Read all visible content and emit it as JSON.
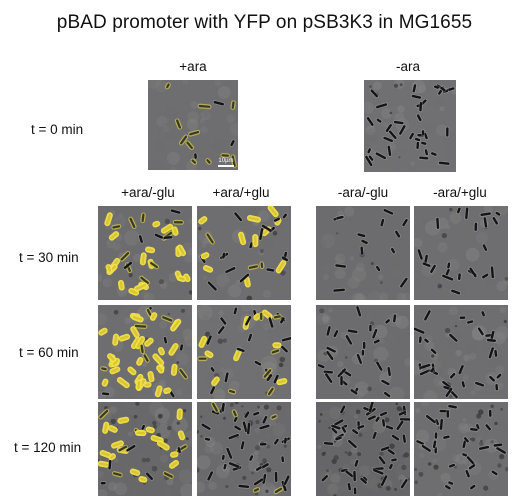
{
  "title": "pBAD promoter with YFP on pSB3K3 in MG1655",
  "top_headers": {
    "plus_ara": "+ara",
    "minus_ara": "-ara"
  },
  "sub_headers": [
    "+ara/-glu",
    "+ara/+glu",
    "-ara/-glu",
    "-ara/+glu"
  ],
  "time_labels": [
    "t = 0 min",
    "t = 30 min",
    "t = 60 min",
    "t = 120 min"
  ],
  "scale_bar": "10µm",
  "colors": {
    "background": "#ffffff",
    "micrograph_gray": "#7e7e7e",
    "cell_dark": "#141414",
    "yfp_yellow": "#f2e24a"
  },
  "panels": [
    {
      "id": "t0-plus-ara",
      "seed": 11,
      "cells": 14,
      "yellow_fraction": 0.0,
      "glow_fraction": 0.7,
      "debris": 0,
      "bright": 110
    },
    {
      "id": "t0-minus-ara",
      "seed": 23,
      "cells": 38,
      "yellow_fraction": 0,
      "glow_fraction": 0,
      "debris": 6,
      "bright": 112
    },
    {
      "id": "t30-plus-ara-minus-glu",
      "seed": 31,
      "cells": 34,
      "yellow_fraction": 0.65,
      "glow_fraction": 0.2,
      "debris": 5,
      "bright": 108
    },
    {
      "id": "t30-plus-ara-plus-glu",
      "seed": 37,
      "cells": 30,
      "yellow_fraction": 0.25,
      "glow_fraction": 0.2,
      "debris": 5,
      "bright": 110
    },
    {
      "id": "t30-minus-ara-minus-glu",
      "seed": 41,
      "cells": 14,
      "yellow_fraction": 0,
      "glow_fraction": 0,
      "debris": 4,
      "bright": 108
    },
    {
      "id": "t30-minus-ara-plus-glu",
      "seed": 43,
      "cells": 22,
      "yellow_fraction": 0,
      "glow_fraction": 0,
      "debris": 5,
      "bright": 110
    },
    {
      "id": "t60-plus-ara-minus-glu",
      "seed": 47,
      "cells": 46,
      "yellow_fraction": 0.75,
      "glow_fraction": 0.15,
      "debris": 5,
      "bright": 110
    },
    {
      "id": "t60-plus-ara-plus-glu",
      "seed": 53,
      "cells": 36,
      "yellow_fraction": 0.15,
      "glow_fraction": 0.25,
      "debris": 8,
      "bright": 112
    },
    {
      "id": "t60-minus-ara-minus-glu",
      "seed": 59,
      "cells": 28,
      "yellow_fraction": 0,
      "glow_fraction": 0,
      "debris": 6,
      "bright": 108
    },
    {
      "id": "t60-minus-ara-plus-glu",
      "seed": 61,
      "cells": 32,
      "yellow_fraction": 0,
      "glow_fraction": 0,
      "debris": 8,
      "bright": 110
    },
    {
      "id": "t120-plus-ara-minus-glu",
      "seed": 67,
      "cells": 30,
      "yellow_fraction": 0.55,
      "glow_fraction": 0.2,
      "debris": 28,
      "bright": 104
    },
    {
      "id": "t120-plus-ara-plus-glu",
      "seed": 71,
      "cells": 40,
      "yellow_fraction": 0,
      "glow_fraction": 0.1,
      "debris": 30,
      "bright": 106
    },
    {
      "id": "t120-minus-ara-minus-glu",
      "seed": 73,
      "cells": 46,
      "yellow_fraction": 0,
      "glow_fraction": 0,
      "debris": 36,
      "bright": 102
    },
    {
      "id": "t120-minus-ara-plus-glu",
      "seed": 79,
      "cells": 30,
      "yellow_fraction": 0,
      "glow_fraction": 0,
      "debris": 22,
      "bright": 110
    }
  ]
}
